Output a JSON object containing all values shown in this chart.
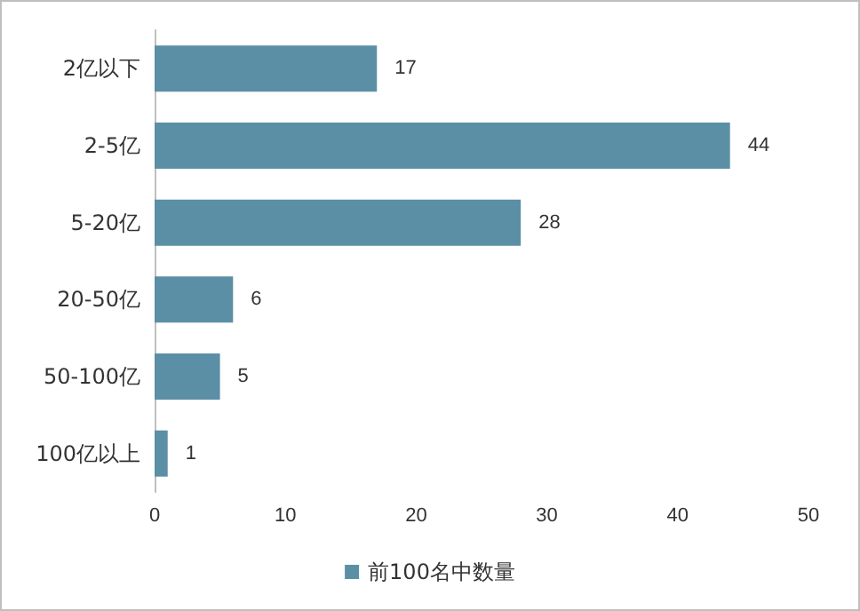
{
  "chart_data": {
    "type": "bar",
    "orientation": "horizontal",
    "categories": [
      "2亿以下",
      "2-5亿",
      "5-20亿",
      "20-50亿",
      "50-100亿",
      "100亿以上"
    ],
    "series": [
      {
        "name": "前100名中数量",
        "color": "#5b8fa6",
        "values": [
          17,
          44,
          28,
          6,
          5,
          1
        ]
      }
    ],
    "xlim": [
      0,
      50
    ],
    "xticks": [
      0,
      10,
      20,
      30,
      40,
      50
    ],
    "grid": false,
    "legend": "bottom",
    "data_labels": true
  }
}
